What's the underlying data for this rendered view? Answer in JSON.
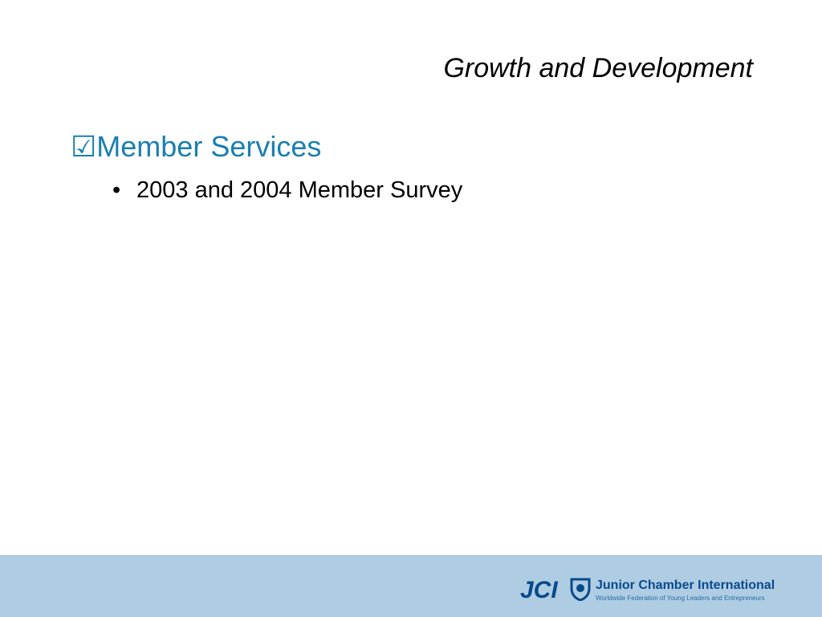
{
  "slide": {
    "title": "Growth and Development",
    "heading": {
      "marker": "☑",
      "text": "Member Services"
    },
    "bullets": [
      {
        "marker": "•",
        "text": "2003 and 2004 Member Survey"
      }
    ]
  },
  "footer": {
    "logo": "JCI",
    "name": "Junior Chamber International",
    "tagline": "Worldwide Federation of Young Leaders and Entrepreneurs"
  }
}
